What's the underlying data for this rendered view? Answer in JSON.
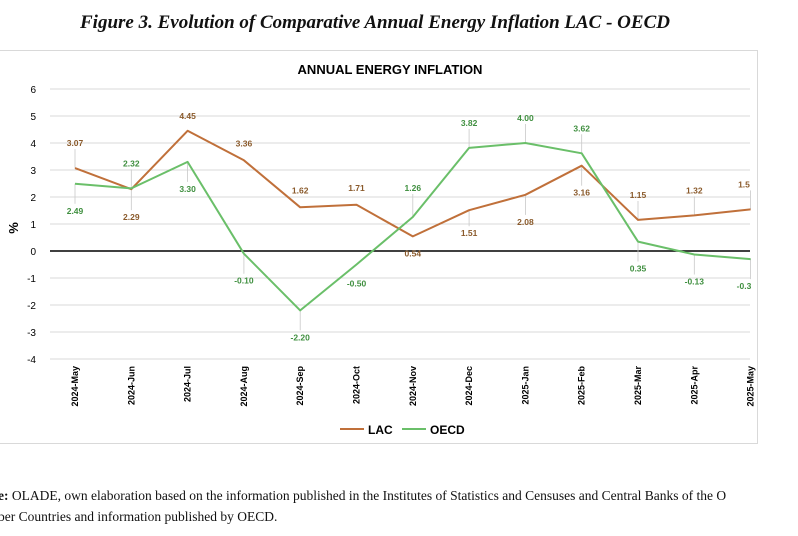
{
  "figure_title": "Figure 3. Evolution of Comparative Annual Energy Inflation LAC - OECD",
  "source": {
    "prefix": "e:",
    "line1": " OLADE, own elaboration based on the information published in the Institutes of Statistics and Censuses and Central Banks of the O",
    "line2": "ber Countries and information published by OECD."
  },
  "colors": {
    "LAC": "#c0703a",
    "OECD": "#6abf69",
    "zero_line": "#000000",
    "grid": "#d9d9d9"
  },
  "chart_data": {
    "type": "line",
    "title": "ANNUAL ENERGY INFLATION",
    "xlabel": "",
    "ylabel": "%",
    "ylim": [
      -4,
      6
    ],
    "yticks": [
      "-4",
      "-3",
      "-2",
      "-1",
      "0",
      "1",
      "2",
      "3",
      "4",
      "5",
      "6"
    ],
    "grid": true,
    "legend_position": "bottom",
    "categories": [
      "2024-May",
      "2024-Jun",
      "2024-Jul",
      "2024-Aug",
      "2024-Sep",
      "2024-Oct",
      "2024-Nov",
      "2024-Dec",
      "2025-Jan",
      "2025-Feb",
      "2025-Mar",
      "2025-Apr",
      "2025-May"
    ],
    "series": [
      {
        "name": "LAC",
        "values": [
          3.07,
          2.29,
          4.45,
          3.36,
          1.62,
          1.71,
          0.54,
          1.51,
          2.08,
          3.16,
          1.15,
          1.32,
          1.54
        ],
        "labels": [
          "3.07",
          "2.29",
          "4.45",
          "3.36",
          "1.62",
          "1.71",
          "0.54",
          "1.51",
          "2.08",
          "3.16",
          "1.15",
          "1.32",
          "1.5"
        ]
      },
      {
        "name": "OECD",
        "values": [
          2.49,
          2.32,
          3.3,
          -0.1,
          -2.2,
          -0.5,
          1.26,
          3.82,
          4.0,
          3.62,
          0.35,
          -0.13,
          -0.3
        ],
        "labels": [
          "2.49",
          "2.32",
          "3.30",
          "-0.10",
          "-2.20",
          "-0.50",
          "1.26",
          "3.82",
          "4.00",
          "3.62",
          "0.35",
          "-0.13",
          "-0.3"
        ]
      }
    ]
  }
}
